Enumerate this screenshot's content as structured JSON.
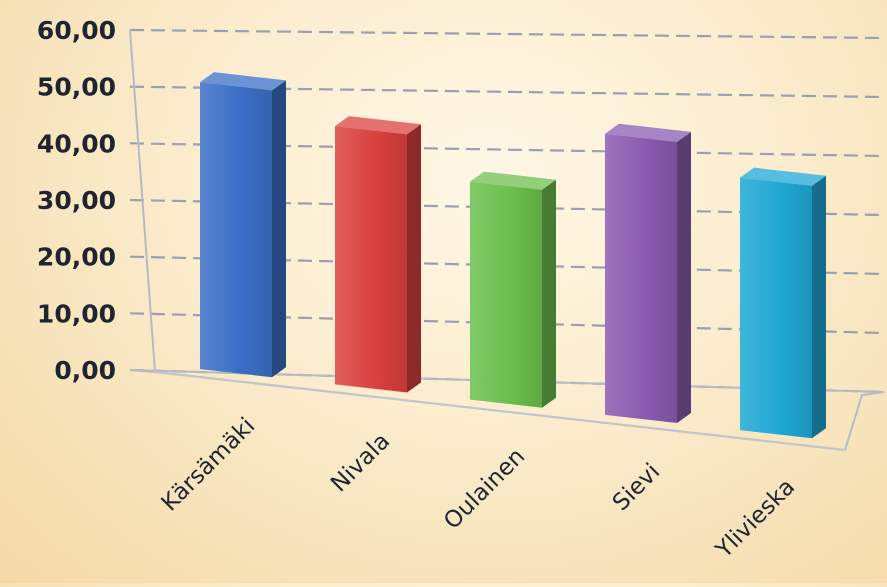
{
  "chart_data": {
    "type": "bar",
    "style": "3d-column",
    "categories": [
      "Kärsämäki",
      "Nivala",
      "Oulainen",
      "Sievi",
      "Ylivieska"
    ],
    "values": [
      50,
      45,
      38,
      49,
      44
    ],
    "colors": [
      "#3b6fc6",
      "#d9413f",
      "#6cbf4d",
      "#8a5bb0",
      "#1fa8d4"
    ],
    "y_tick_labels": [
      "0,00",
      "10,00",
      "20,00",
      "30,00",
      "40,00",
      "50,00",
      "60,00"
    ],
    "ylim": [
      0,
      60
    ],
    "grid": true,
    "legend": "none",
    "title": "",
    "xlabel": "",
    "ylabel": ""
  }
}
